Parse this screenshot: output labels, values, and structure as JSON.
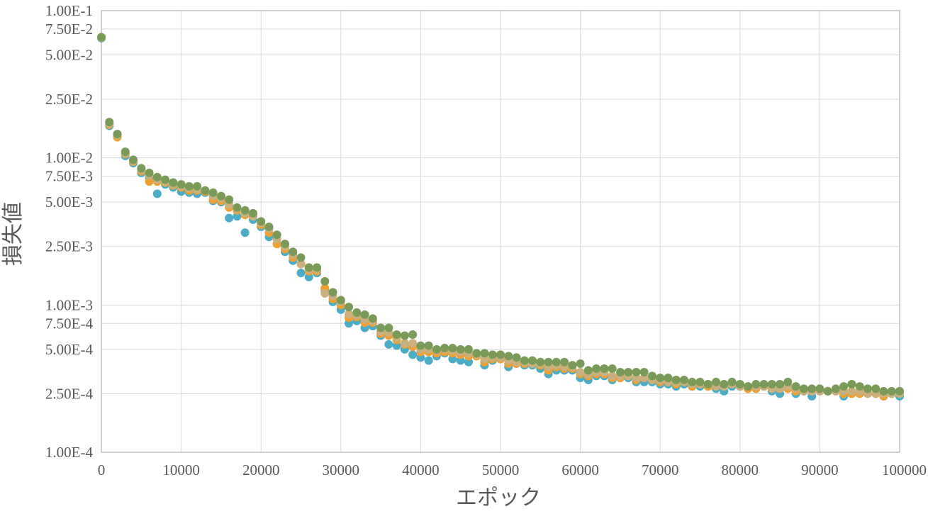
{
  "chart_data": {
    "type": "scatter",
    "title": "",
    "xlabel": "エポック",
    "ylabel": "損失値",
    "xlim": [
      0,
      100000
    ],
    "ylim": [
      0.0001,
      0.1
    ],
    "y_scale": "log",
    "grid": true,
    "legend": "none",
    "x_ticks": [
      0,
      10000,
      20000,
      30000,
      40000,
      50000,
      60000,
      70000,
      80000,
      90000,
      100000
    ],
    "x_tick_labels": [
      "0",
      "10000",
      "20000",
      "30000",
      "40000",
      "50000",
      "60000",
      "70000",
      "80000",
      "90000",
      "100000"
    ],
    "y_ticks": [
      0.0001,
      0.00025,
      0.0005,
      0.00075,
      0.001,
      0.0025,
      0.005,
      0.0075,
      0.01,
      0.025,
      0.05,
      0.075,
      0.1
    ],
    "y_tick_labels": [
      "1.00E-4",
      "2.50E-4",
      "5.00E-4",
      "7.50E-4",
      "1.00E-3",
      "2.50E-3",
      "5.00E-3",
      "7.50E-3",
      "1.00E-2",
      "2.50E-2",
      "5.00E-2",
      "7.50E-2",
      "1.00E-1"
    ],
    "x": [
      0,
      1000,
      2000,
      3000,
      4000,
      5000,
      6000,
      7000,
      8000,
      9000,
      10000,
      11000,
      12000,
      13000,
      14000,
      15000,
      16000,
      17000,
      18000,
      19000,
      20000,
      21000,
      22000,
      23000,
      24000,
      25000,
      26000,
      27000,
      28000,
      29000,
      30000,
      31000,
      32000,
      33000,
      34000,
      35000,
      36000,
      37000,
      38000,
      39000,
      40000,
      41000,
      42000,
      43000,
      44000,
      45000,
      46000,
      47000,
      48000,
      49000,
      50000,
      51000,
      52000,
      53000,
      54000,
      55000,
      56000,
      57000,
      58000,
      59000,
      60000,
      61000,
      62000,
      63000,
      64000,
      65000,
      66000,
      67000,
      68000,
      69000,
      70000,
      71000,
      72000,
      73000,
      74000,
      75000,
      76000,
      77000,
      78000,
      79000,
      80000,
      81000,
      82000,
      83000,
      84000,
      85000,
      86000,
      87000,
      88000,
      89000,
      90000,
      91000,
      92000,
      93000,
      94000,
      95000,
      96000,
      97000,
      98000,
      99000,
      100000
    ],
    "series": [
      {
        "color": "#4bacc6",
        "values": [
          0.065,
          0.0165,
          0.014,
          0.0103,
          0.0092,
          0.0079,
          0.0073,
          0.0057,
          0.0066,
          0.0063,
          0.0059,
          0.0058,
          0.0057,
          0.0058,
          0.0051,
          0.005,
          0.0039,
          0.004,
          0.0031,
          0.0038,
          0.0034,
          0.0029,
          0.0026,
          0.0023,
          0.002,
          0.00165,
          0.00155,
          0.00165,
          0.00125,
          0.00105,
          0.00093,
          0.00075,
          0.00078,
          0.0007,
          0.00072,
          0.00062,
          0.00054,
          0.00053,
          0.0005,
          0.00046,
          0.00044,
          0.00042,
          0.00045,
          0.00047,
          0.00043,
          0.00042,
          0.00041,
          0.00045,
          0.00039,
          0.00042,
          0.00043,
          0.00038,
          0.0004,
          0.00039,
          0.00039,
          0.00037,
          0.00034,
          0.00036,
          0.00036,
          0.00036,
          0.00032,
          0.00031,
          0.00033,
          0.00033,
          0.00031,
          0.00032,
          0.00032,
          0.0003,
          0.0003,
          0.0003,
          0.00029,
          0.00029,
          0.00028,
          0.00029,
          0.00028,
          0.00028,
          0.00028,
          0.00027,
          0.00026,
          0.00028,
          0.00028,
          0.00027,
          0.00027,
          0.00028,
          0.00026,
          0.00025,
          0.00027,
          0.00025,
          0.00026,
          0.00024,
          0.00027,
          0.00026,
          0.00026,
          0.00024,
          0.00025,
          0.00025,
          0.00025,
          0.00025,
          0.00024,
          0.00025,
          0.00024
        ]
      },
      {
        "color": "#f0a030",
        "values": [
          0.066,
          0.0168,
          0.0138,
          0.0106,
          0.0094,
          0.0081,
          0.0069,
          0.0069,
          0.0068,
          0.0065,
          0.0063,
          0.006,
          0.006,
          0.0059,
          0.0052,
          0.0051,
          0.0046,
          0.0044,
          0.0041,
          0.004,
          0.0035,
          0.0031,
          0.0026,
          0.0024,
          0.0021,
          0.0019,
          0.0017,
          0.0017,
          0.0013,
          0.0011,
          0.001,
          0.00082,
          0.00083,
          0.00076,
          0.00076,
          0.00064,
          0.00062,
          0.00058,
          0.00054,
          0.00052,
          0.00048,
          0.00048,
          0.00047,
          0.00048,
          0.00047,
          0.00046,
          0.00045,
          0.00045,
          0.00041,
          0.00043,
          0.00043,
          0.0004,
          0.0004,
          0.0004,
          0.0004,
          0.00039,
          0.00036,
          0.00038,
          0.00037,
          0.00037,
          0.00034,
          0.00033,
          0.00034,
          0.00034,
          0.00032,
          0.00032,
          0.00033,
          0.00031,
          0.00032,
          0.00031,
          0.0003,
          0.0003,
          0.00029,
          0.0003,
          0.00028,
          0.00029,
          0.00028,
          0.00028,
          0.00028,
          0.00029,
          0.00028,
          0.00027,
          0.00027,
          0.00028,
          0.00027,
          0.00027,
          0.00027,
          0.00026,
          0.00026,
          0.00026,
          0.00026,
          0.00026,
          0.00026,
          0.00025,
          0.00025,
          0.00025,
          0.00025,
          0.00025,
          0.00024,
          0.00025,
          0.00025
        ]
      },
      {
        "color": "#c9b07e",
        "values": [
          0.0655,
          0.017,
          0.0142,
          0.0107,
          0.0095,
          0.0083,
          0.0076,
          0.0071,
          0.0069,
          0.0066,
          0.0064,
          0.0062,
          0.0061,
          0.006,
          0.0055,
          0.0053,
          0.0048,
          0.0045,
          0.0042,
          0.004,
          0.0036,
          0.0033,
          0.0028,
          0.0025,
          0.0022,
          0.0019,
          0.00175,
          0.00175,
          0.0012,
          0.00115,
          0.00105,
          0.00087,
          0.00085,
          0.0008,
          0.00078,
          0.00066,
          0.00065,
          0.0006,
          0.00055,
          0.00055,
          0.0005,
          0.0005,
          0.00049,
          0.0005,
          0.00049,
          0.00048,
          0.00047,
          0.00046,
          0.00043,
          0.00044,
          0.00044,
          0.00042,
          0.00041,
          0.00041,
          0.0004,
          0.0004,
          0.00038,
          0.00039,
          0.00038,
          0.00038,
          0.00035,
          0.00034,
          0.00035,
          0.00035,
          0.00033,
          0.00033,
          0.00033,
          0.00032,
          0.00032,
          0.00031,
          0.00031,
          0.0003,
          0.0003,
          0.0003,
          0.00029,
          0.00029,
          0.00029,
          0.00028,
          0.00028,
          0.00029,
          0.00028,
          0.00028,
          0.00028,
          0.00028,
          0.00027,
          0.00027,
          0.00028,
          0.00027,
          0.00026,
          0.00026,
          0.00026,
          0.00026,
          0.00026,
          0.00026,
          0.00026,
          0.00026,
          0.00025,
          0.00025,
          0.00025,
          0.00025,
          0.00025
        ]
      },
      {
        "color": "#7a9a5a",
        "values": [
          0.066,
          0.0175,
          0.0145,
          0.011,
          0.0097,
          0.0085,
          0.0079,
          0.0074,
          0.0071,
          0.0068,
          0.0066,
          0.0064,
          0.0064,
          0.006,
          0.0058,
          0.0055,
          0.0052,
          0.0046,
          0.0044,
          0.0042,
          0.0037,
          0.0034,
          0.003,
          0.0026,
          0.0023,
          0.0021,
          0.0018,
          0.0018,
          0.00145,
          0.00122,
          0.00108,
          0.00097,
          0.00089,
          0.00086,
          0.00081,
          0.0007,
          0.0007,
          0.00063,
          0.00062,
          0.00063,
          0.00053,
          0.00053,
          0.0005,
          0.00051,
          0.00051,
          0.0005,
          0.0005,
          0.00047,
          0.00047,
          0.00046,
          0.00046,
          0.00045,
          0.00044,
          0.00042,
          0.00042,
          0.00041,
          0.00041,
          0.00041,
          0.00041,
          0.00039,
          0.0004,
          0.00036,
          0.00037,
          0.00037,
          0.00037,
          0.00035,
          0.00035,
          0.00035,
          0.00035,
          0.00033,
          0.00032,
          0.00032,
          0.00031,
          0.00031,
          0.0003,
          0.0003,
          0.00029,
          0.0003,
          0.00029,
          0.0003,
          0.00029,
          0.00028,
          0.00029,
          0.00029,
          0.00029,
          0.00029,
          0.0003,
          0.00028,
          0.00027,
          0.00027,
          0.00027,
          0.00026,
          0.00027,
          0.00028,
          0.00029,
          0.00028,
          0.00027,
          0.00027,
          0.00026,
          0.00026,
          0.00026
        ]
      }
    ]
  }
}
